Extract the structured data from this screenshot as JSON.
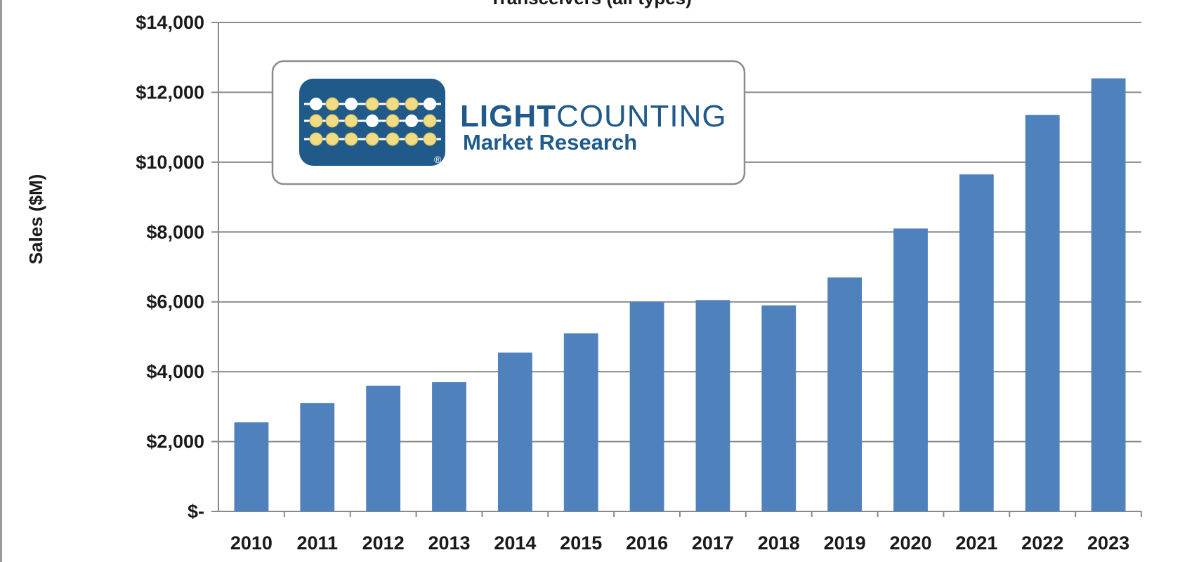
{
  "chart_data": {
    "type": "bar",
    "title": "Transceivers (all types)",
    "ylabel": "Sales ($M)",
    "xlabel": "",
    "categories": [
      "2010",
      "2011",
      "2012",
      "2013",
      "2014",
      "2015",
      "2016",
      "2017",
      "2018",
      "2019",
      "2020",
      "2021",
      "2022",
      "2023"
    ],
    "values": [
      2550,
      3100,
      3600,
      3700,
      4550,
      5100,
      6000,
      6050,
      5900,
      6700,
      8100,
      9650,
      11350,
      12400
    ],
    "ylim": [
      0,
      14000
    ],
    "yticks": [
      0,
      2000,
      4000,
      6000,
      8000,
      10000,
      12000,
      14000
    ],
    "ytick_labels": [
      "$-",
      "$2,000",
      "$4,000",
      "$6,000",
      "$8,000",
      "$10,000",
      "$12,000",
      "$14,000"
    ],
    "grid": "horizontal",
    "bar_color": "#4f81bd",
    "legend": "none"
  },
  "logo": {
    "brand_bold": "LIGHT",
    "brand_regular": "COUNTING",
    "subtitle": "Market Research",
    "mark": "®",
    "colors": {
      "navy": "#1f5a8a",
      "bead_yellow": "#f0dc82",
      "bead_white": "#ffffff"
    }
  }
}
